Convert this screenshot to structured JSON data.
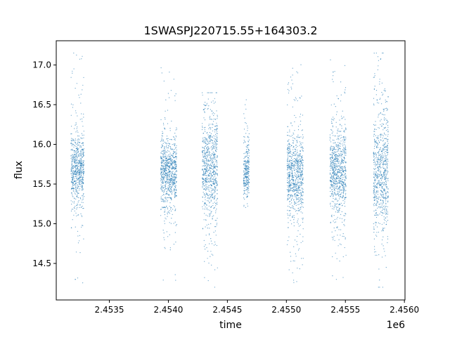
{
  "chart_data": {
    "type": "scatter",
    "title": "1SWASPJ220715.55+164303.2",
    "xlabel": "time",
    "ylabel": "flux",
    "x_offset_label": "1e6",
    "xlim": [
      2453050,
      2456005
    ],
    "ylim": [
      14.04,
      17.305
    ],
    "x_ticks": [
      2453500,
      2454000,
      2454500,
      2455000,
      2455500,
      2456000
    ],
    "x_tick_labels": [
      "2.4535",
      "2.4540",
      "2.4545",
      "2.4550",
      "2.4555",
      "2.4560"
    ],
    "y_ticks": [
      14.5,
      15.0,
      15.5,
      16.0,
      16.5,
      17.0
    ],
    "y_tick_labels": [
      "14.5",
      "15.0",
      "15.5",
      "16.0",
      "16.5",
      "17.0"
    ],
    "grid": false,
    "marker_color": "#1f77b4",
    "seasons": [
      {
        "t_start": 2453174,
        "t_end": 2453286,
        "flux_median": 15.69,
        "flux_sigma": 0.2,
        "flux_min": 14.25,
        "flux_max": 17.15
      },
      {
        "t_start": 2453935,
        "t_end": 2454071,
        "flux_median": 15.65,
        "flux_sigma": 0.2,
        "flux_min": 14.28,
        "flux_max": 17.1
      },
      {
        "t_start": 2454286,
        "t_end": 2454417,
        "flux_median": 15.7,
        "flux_sigma": 0.3,
        "flux_min": 14.2,
        "flux_max": 16.65
      },
      {
        "t_start": 2454637,
        "t_end": 2454685,
        "flux_median": 15.65,
        "flux_sigma": 0.15,
        "flux_min": 15.2,
        "flux_max": 16.6
      },
      {
        "t_start": 2455006,
        "t_end": 2455143,
        "flux_median": 15.62,
        "flux_sigma": 0.25,
        "flux_min": 14.2,
        "flux_max": 17.05
      },
      {
        "t_start": 2455369,
        "t_end": 2455506,
        "flux_median": 15.65,
        "flux_sigma": 0.25,
        "flux_min": 14.2,
        "flux_max": 17.1
      },
      {
        "t_start": 2455738,
        "t_end": 2455863,
        "flux_median": 15.65,
        "flux_sigma": 0.35,
        "flux_min": 14.2,
        "flux_max": 17.15
      }
    ]
  }
}
